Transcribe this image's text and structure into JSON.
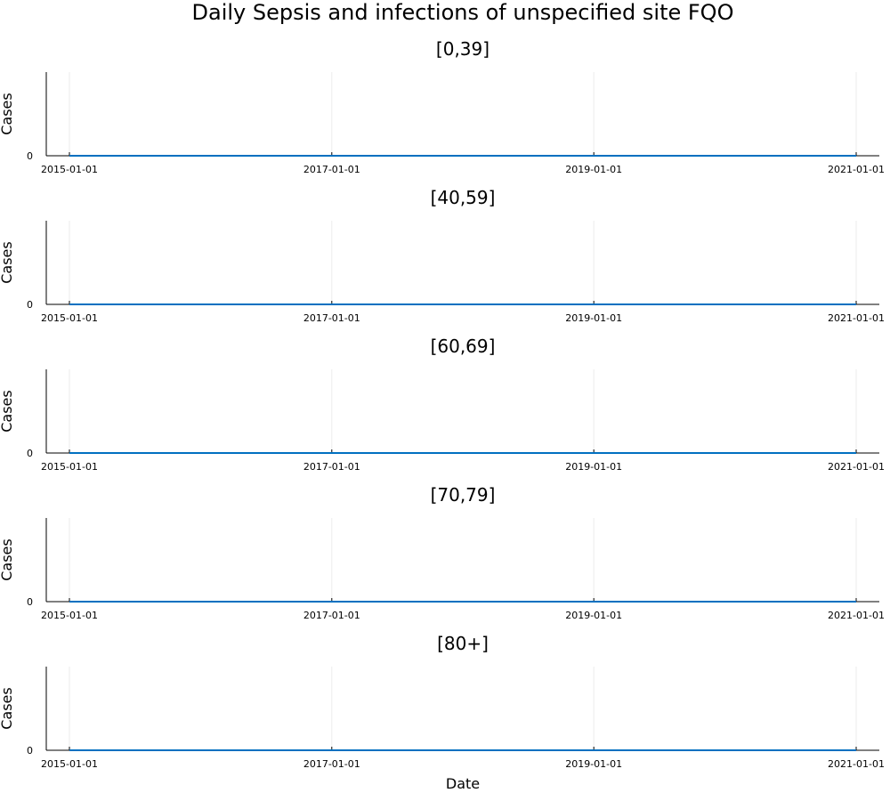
{
  "colors": {
    "series": "#0070c0"
  },
  "chart_data": {
    "type": "line",
    "title": "Daily Sepsis and infections of unspecified site FQO",
    "xlabel": "Date",
    "ylabel": "Cases",
    "x_ticks": [
      "2015-01-01",
      "2017-01-01",
      "2019-01-01",
      "2021-01-01"
    ],
    "y_ticks": [
      0
    ],
    "xlim": [
      "2015-01-01",
      "2021-01-01"
    ],
    "ylim": [
      0,
      1
    ],
    "grid": true,
    "legend": "none",
    "panels": [
      {
        "title": "[0,39]",
        "series": [
          {
            "x": [
              "2015-01-01",
              "2021-01-01"
            ],
            "values": [
              0,
              0
            ]
          }
        ]
      },
      {
        "title": "[40,59]",
        "series": [
          {
            "x": [
              "2015-01-01",
              "2021-01-01"
            ],
            "values": [
              0,
              0
            ]
          }
        ]
      },
      {
        "title": "[60,69]",
        "series": [
          {
            "x": [
              "2015-01-01",
              "2021-01-01"
            ],
            "values": [
              0,
              0
            ]
          }
        ]
      },
      {
        "title": "[70,79]",
        "series": [
          {
            "x": [
              "2015-01-01",
              "2021-01-01"
            ],
            "values": [
              0,
              0
            ]
          }
        ]
      },
      {
        "title": "[80+]",
        "series": [
          {
            "x": [
              "2015-01-01",
              "2021-01-01"
            ],
            "values": [
              0,
              0
            ]
          }
        ]
      }
    ]
  }
}
